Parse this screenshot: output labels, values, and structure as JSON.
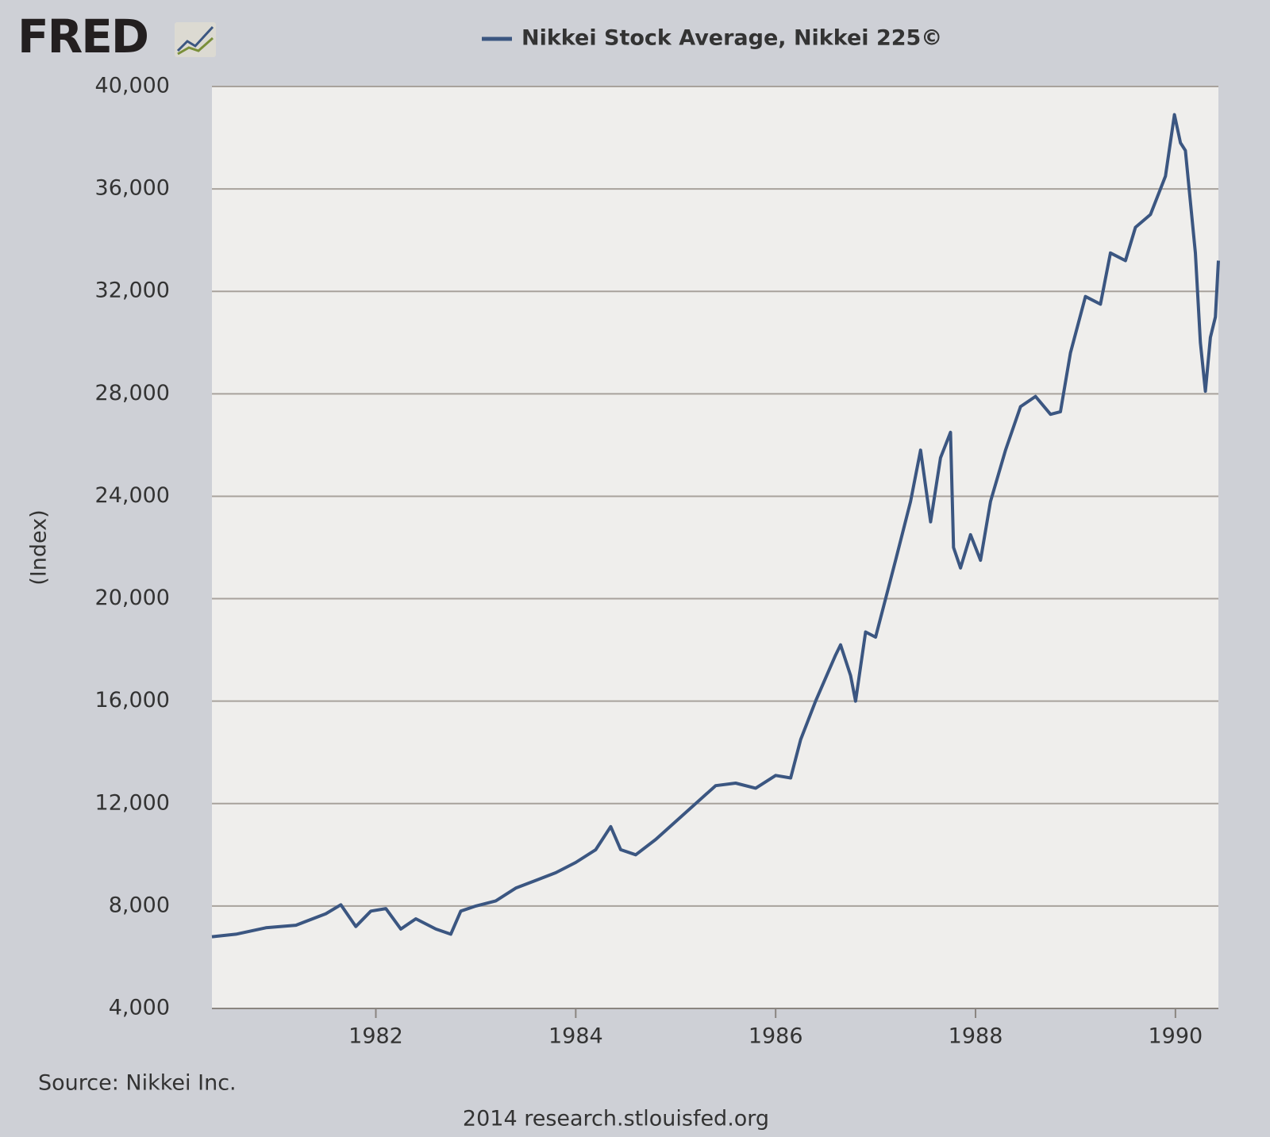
{
  "logo": "FRED",
  "chart_data": {
    "type": "line",
    "series": [
      {
        "name": "Nikkei Stock Average, Nikkei 225©",
        "color": "#3b5681",
        "x": [
          1980.36,
          1980.6,
          1980.9,
          1981.2,
          1981.5,
          1981.65,
          1981.8,
          1981.95,
          1982.1,
          1982.25,
          1982.4,
          1982.6,
          1982.75,
          1982.85,
          1983.0,
          1983.2,
          1983.4,
          1983.6,
          1983.8,
          1984.0,
          1984.2,
          1984.35,
          1984.45,
          1984.6,
          1984.8,
          1985.0,
          1985.2,
          1985.4,
          1985.6,
          1985.8,
          1986.0,
          1986.15,
          1986.25,
          1986.4,
          1986.6,
          1986.65,
          1986.75,
          1986.8,
          1986.9,
          1987.0,
          1987.1,
          1987.2,
          1987.35,
          1987.45,
          1987.55,
          1987.65,
          1987.75,
          1987.78,
          1987.85,
          1987.95,
          1988.05,
          1988.15,
          1988.3,
          1988.45,
          1988.6,
          1988.75,
          1988.85,
          1988.95,
          1989.1,
          1989.25,
          1989.35,
          1989.5,
          1989.6,
          1989.75,
          1989.9,
          1989.99,
          1990.05,
          1990.1,
          1990.2,
          1990.25,
          1990.3,
          1990.35,
          1990.4,
          1990.43
        ],
        "values": [
          6800,
          6900,
          7150,
          7250,
          7700,
          8050,
          7200,
          7800,
          7900,
          7100,
          7500,
          7100,
          6900,
          7800,
          8000,
          8200,
          8700,
          9000,
          9300,
          9700,
          10200,
          11100,
          10200,
          10000,
          10600,
          11300,
          12000,
          12700,
          12800,
          12600,
          13100,
          13000,
          14500,
          16000,
          17800,
          18200,
          17000,
          16000,
          18700,
          18500,
          20000,
          21500,
          23800,
          25800,
          23000,
          25500,
          26500,
          22000,
          21200,
          22500,
          21500,
          23800,
          25800,
          27500,
          27900,
          27200,
          27300,
          29600,
          31800,
          31500,
          33500,
          33200,
          34500,
          35000,
          36500,
          38900,
          37800,
          37500,
          33500,
          30000,
          28100,
          30200,
          31000,
          33200
        ]
      }
    ],
    "ylabel": "(Index)",
    "xlim": [
      1980.36,
      1990.43
    ],
    "xticks": [
      1982,
      1984,
      1986,
      1988,
      1990
    ],
    "ylim": [
      4000,
      40000
    ],
    "yticks": [
      {
        "value": 4000,
        "label": "4,000"
      },
      {
        "value": 8000,
        "label": "8,000"
      },
      {
        "value": 12000,
        "label": "12,000"
      },
      {
        "value": 16000,
        "label": "16,000"
      },
      {
        "value": 20000,
        "label": "20,000"
      },
      {
        "value": 24000,
        "label": "24,000"
      },
      {
        "value": 28000,
        "label": "28,000"
      },
      {
        "value": 32000,
        "label": "32,000"
      },
      {
        "value": 36000,
        "label": "36,000"
      },
      {
        "value": 40000,
        "label": "40,000"
      }
    ],
    "grid": true,
    "source": "Source: Nikkei Inc.",
    "credit": "2014 research.stlouisfed.org"
  }
}
